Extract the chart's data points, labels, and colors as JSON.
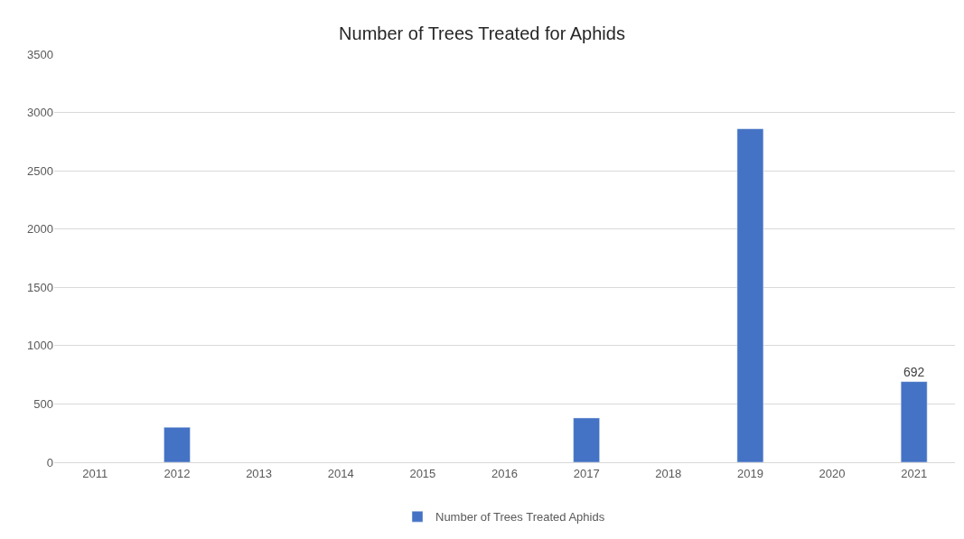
{
  "chart_data": {
    "type": "bar",
    "title": "Number of Trees Treated for Aphids",
    "categories": [
      "2011",
      "2012",
      "2013",
      "2014",
      "2015",
      "2016",
      "2017",
      "2018",
      "2019",
      "2020",
      "2021"
    ],
    "series": [
      {
        "name": "Number of Trees Treated Aphids",
        "color": "#4472c4",
        "values": [
          null,
          300,
          null,
          null,
          null,
          null,
          380,
          null,
          2860,
          null,
          692
        ],
        "value_labels": [
          null,
          null,
          null,
          null,
          null,
          null,
          null,
          null,
          null,
          null,
          "692"
        ]
      }
    ],
    "ylim": [
      0,
      3500
    ],
    "yticks": [
      0,
      500,
      1000,
      1500,
      2000,
      2500,
      3000,
      3500
    ],
    "grid": "y",
    "legend": "bottom"
  }
}
